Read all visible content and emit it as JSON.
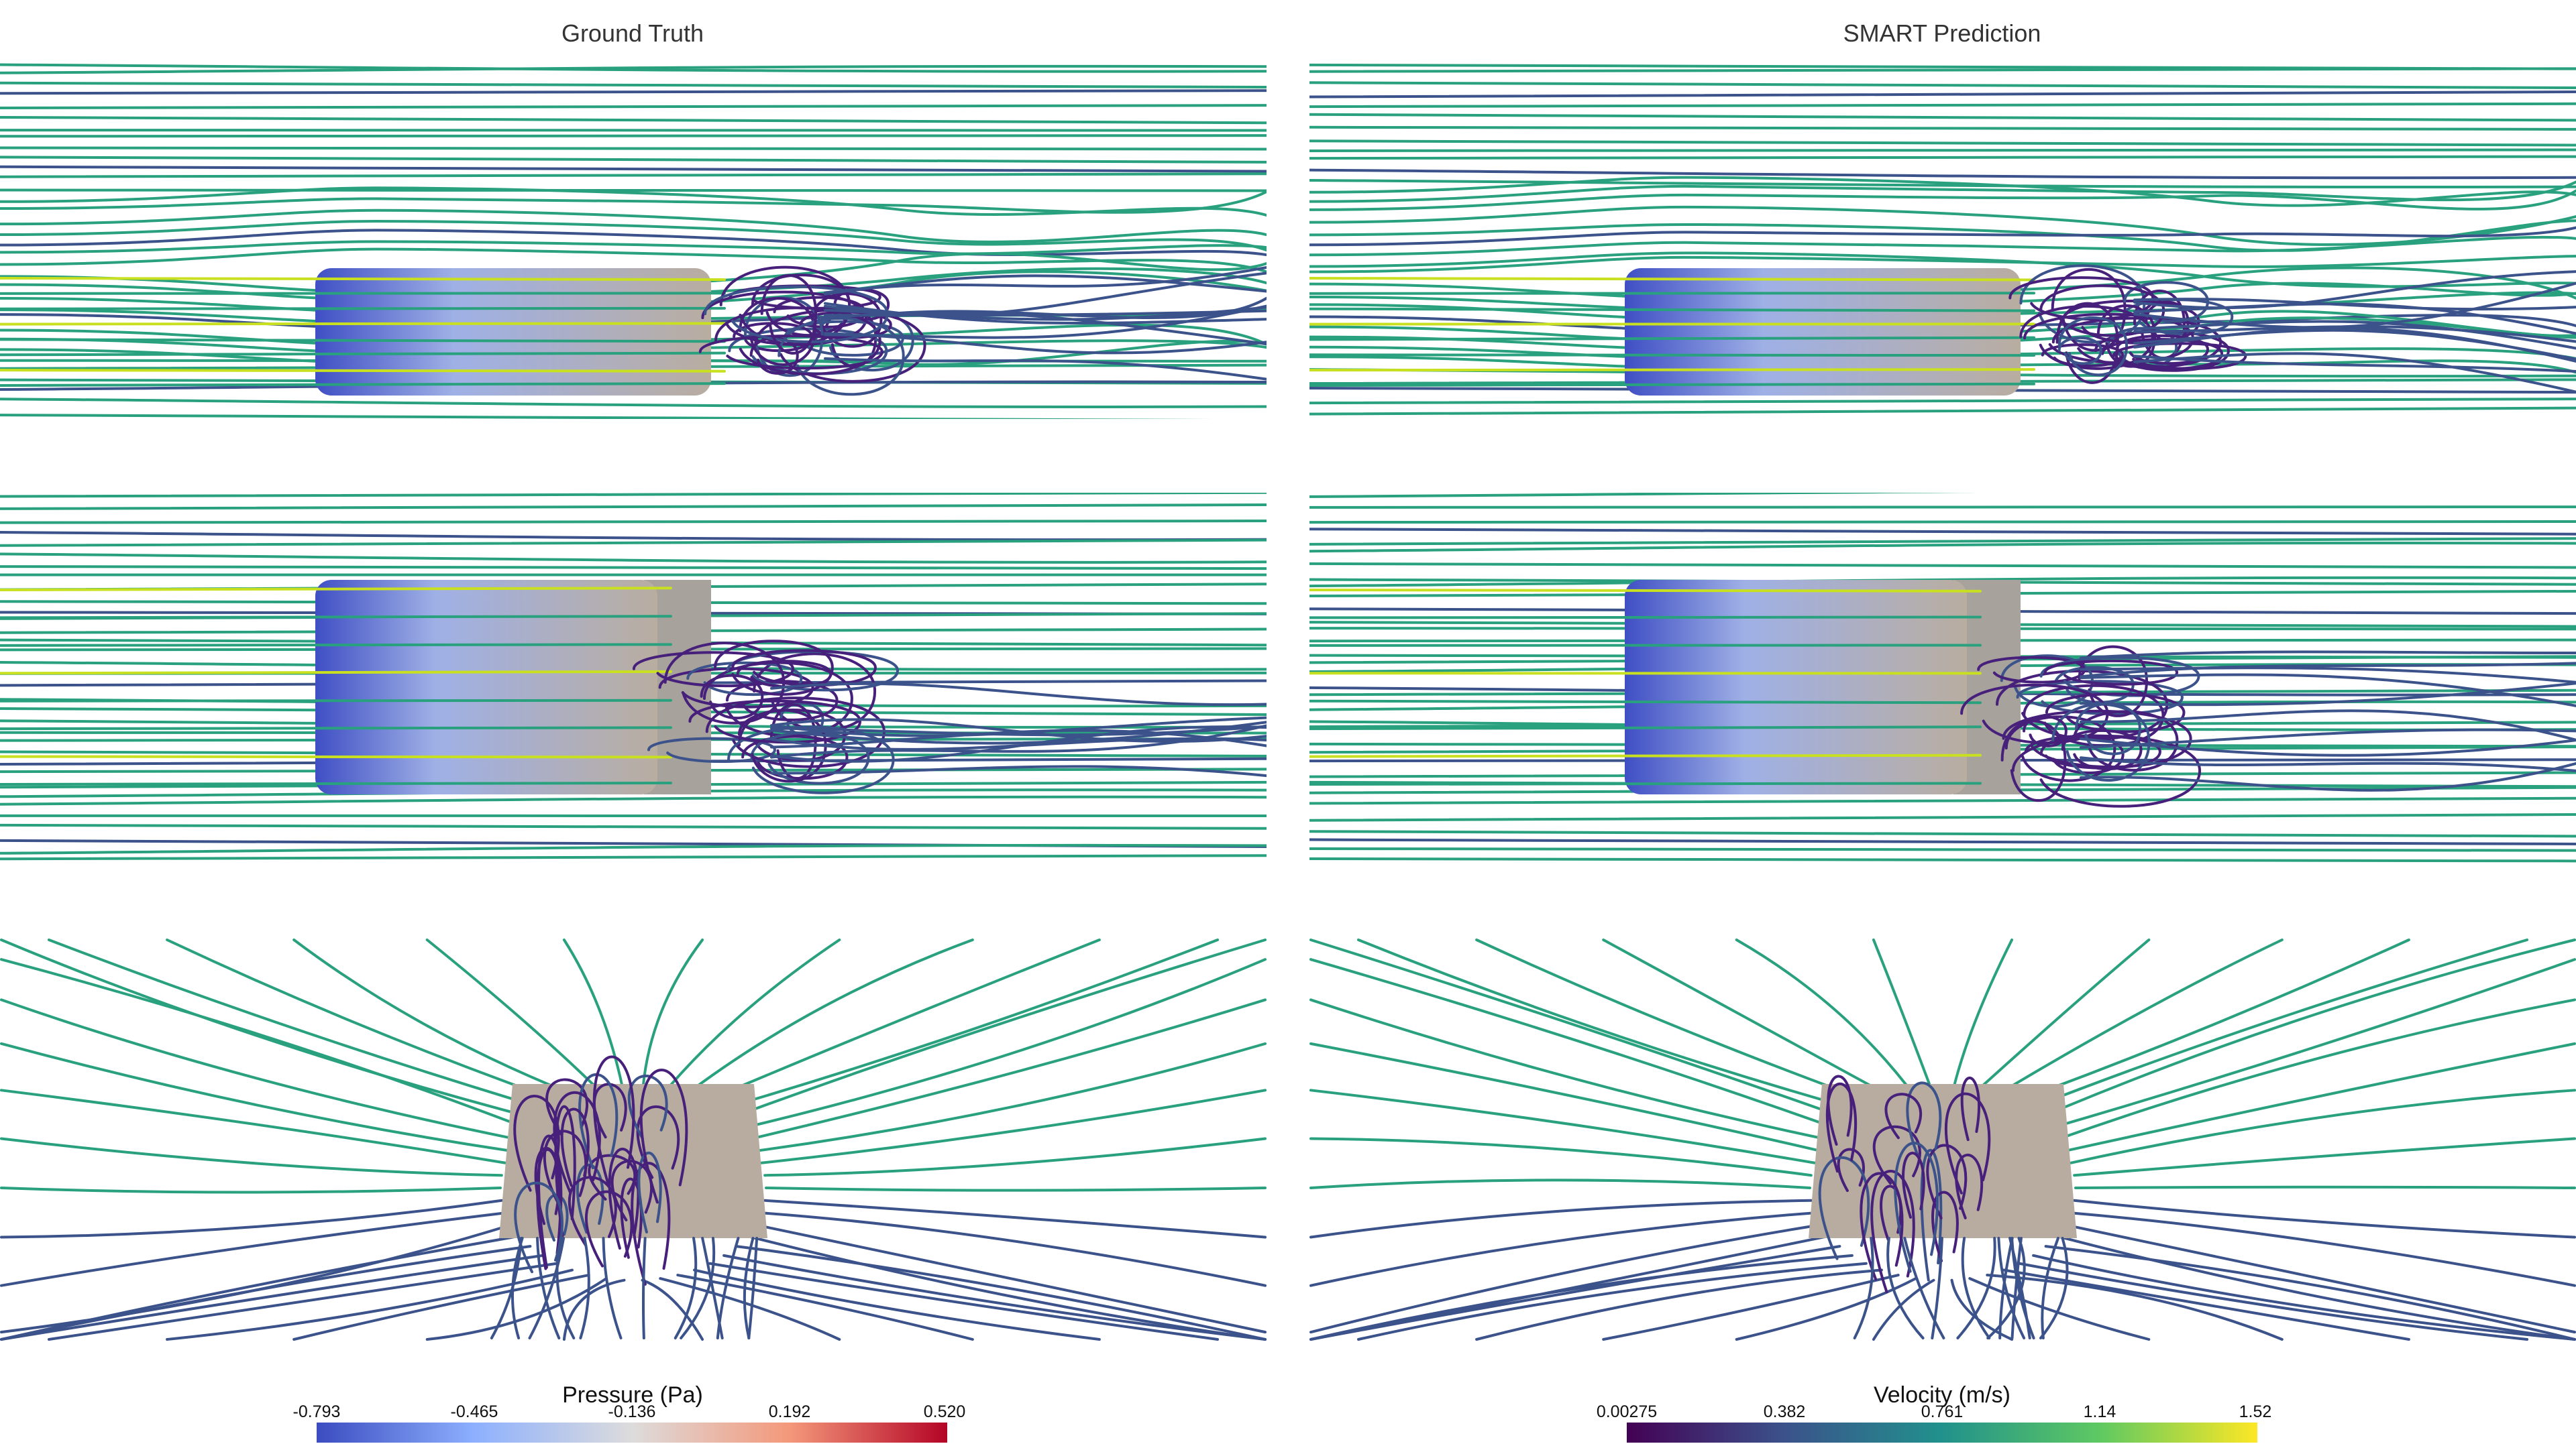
{
  "panels": [
    {
      "title": "Ground Truth"
    },
    {
      "title": "SMART Prediction"
    }
  ],
  "colorbars": [
    {
      "title": "Pressure (Pa)",
      "ticks": [
        "-0.793",
        "-0.465",
        "-0.136",
        "0.192",
        "0.520"
      ],
      "colors": [
        "#3b4cc0",
        "#8db0fe",
        "#dddcdc",
        "#f4987a",
        "#b40426"
      ]
    },
    {
      "title": "Velocity (m/s)",
      "ticks": [
        "0.00275",
        "0.382",
        "0.761",
        "1.14",
        "1.52"
      ],
      "colors": [
        "#440154",
        "#3b528b",
        "#21918c",
        "#5ec962",
        "#fde725"
      ]
    }
  ],
  "colors": {
    "streamline_main": "#2aa17e",
    "streamline_slow": "#3b528b",
    "streamline_vortex": "#46207a",
    "streamline_fast": "#c8e020",
    "body_surface": "#b8aca0",
    "body_side": "#a8a29c",
    "body_front": "#4a5cc8"
  }
}
